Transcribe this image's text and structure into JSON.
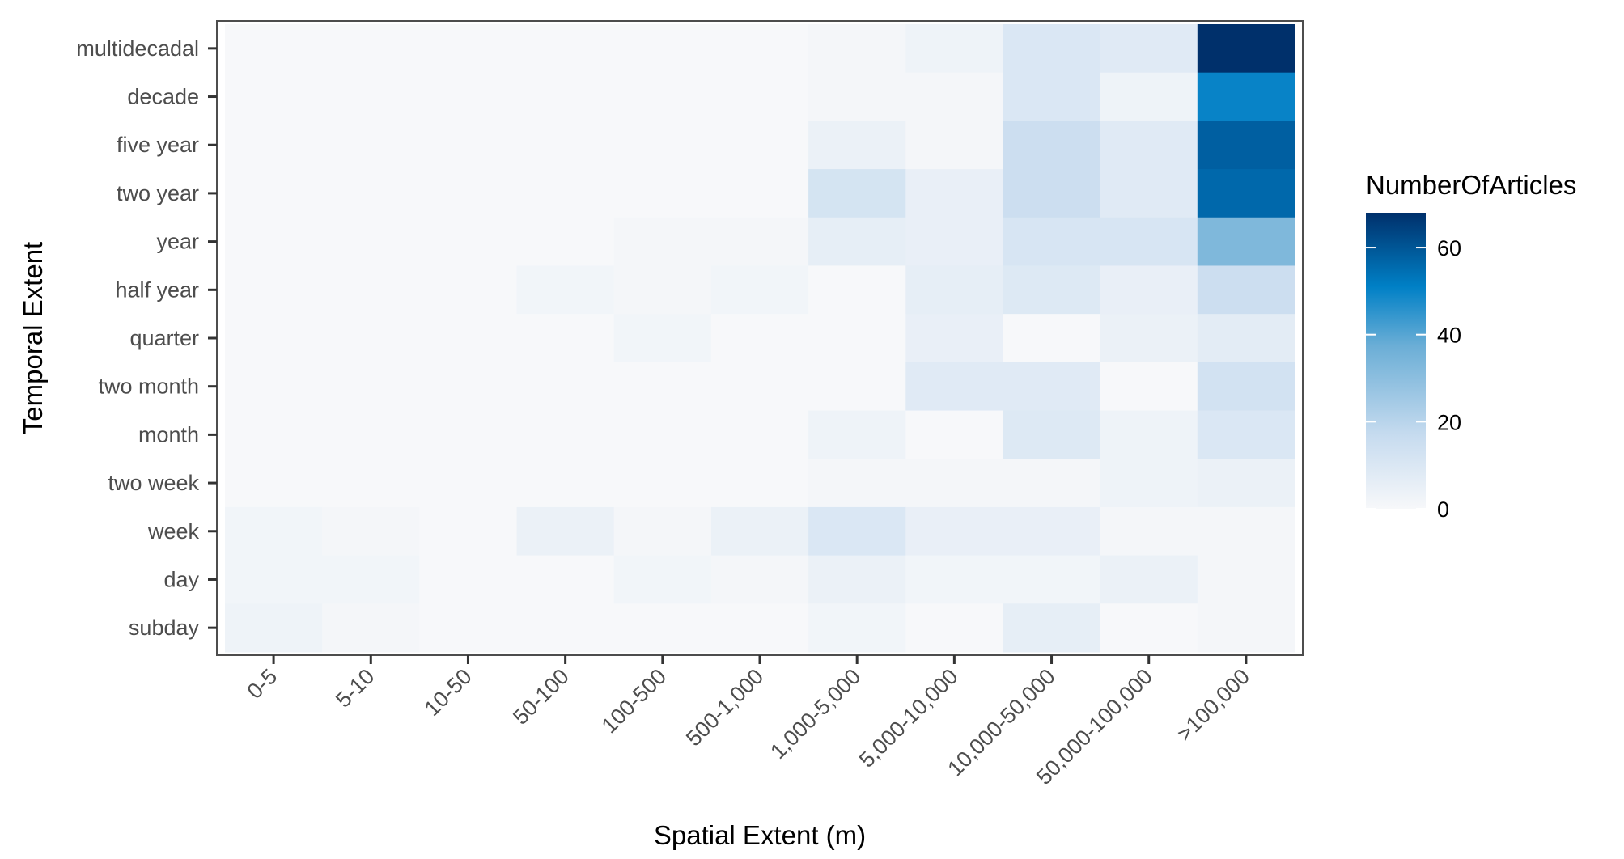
{
  "chart_data": {
    "type": "heatmap",
    "title": "",
    "xlabel": "Spatial Extent (m)",
    "ylabel": "Temporal Extent",
    "x_categories": [
      "0-5",
      "5-10",
      "10-50",
      "50-100",
      "100-500",
      "500-1,000",
      "1,000-5,000",
      "5,000-10,000",
      "10,000-50,000",
      "50,000-100,000",
      ">100,000"
    ],
    "y_categories": [
      "multidecadal",
      "decade",
      "five year",
      "two year",
      "year",
      "half year",
      "quarter",
      "two month",
      "month",
      "two week",
      "week",
      "day",
      "subday"
    ],
    "values": [
      [
        0,
        0,
        0,
        0,
        0,
        0,
        1,
        3,
        10,
        8,
        68
      ],
      [
        0,
        0,
        0,
        0,
        0,
        0,
        1,
        1,
        10,
        3,
        50
      ],
      [
        0,
        0,
        0,
        0,
        0,
        0,
        4,
        1,
        15,
        8,
        58
      ],
      [
        0,
        0,
        0,
        0,
        0,
        0,
        12,
        5,
        15,
        8,
        56
      ],
      [
        0,
        0,
        0,
        0,
        1,
        1,
        6,
        5,
        11,
        11,
        33
      ],
      [
        0,
        0,
        0,
        2,
        1,
        2,
        0,
        6,
        9,
        5,
        15
      ],
      [
        0,
        0,
        0,
        0,
        2,
        0,
        0,
        5,
        0,
        4,
        7
      ],
      [
        0,
        0,
        0,
        0,
        0,
        0,
        0,
        8,
        8,
        0,
        13
      ],
      [
        0,
        0,
        0,
        0,
        0,
        0,
        3,
        0,
        9,
        3,
        10
      ],
      [
        0,
        0,
        0,
        0,
        0,
        0,
        1,
        1,
        1,
        3,
        4
      ],
      [
        2,
        1,
        0,
        4,
        1,
        4,
        10,
        5,
        5,
        1,
        1
      ],
      [
        2,
        2,
        0,
        0,
        2,
        1,
        4,
        2,
        2,
        4,
        1
      ],
      [
        3,
        1,
        0,
        0,
        0,
        0,
        2,
        0,
        6,
        0,
        1
      ]
    ],
    "legend": {
      "title": "NumberOfArticles",
      "ticks": [
        0,
        20,
        40,
        60
      ],
      "range": [
        0,
        68
      ],
      "placement": "right"
    },
    "grid": false
  },
  "colors": {
    "scale_low": "#f7f8fa",
    "scale_mid_low": "#c6dbef",
    "scale_mid": "#6baed6",
    "scale_mid_high": "#0080c6",
    "scale_high": "#00306b",
    "panel_border": "#4d4d4d",
    "tick_text": "#4d4d4d",
    "title_text": "#000000"
  }
}
